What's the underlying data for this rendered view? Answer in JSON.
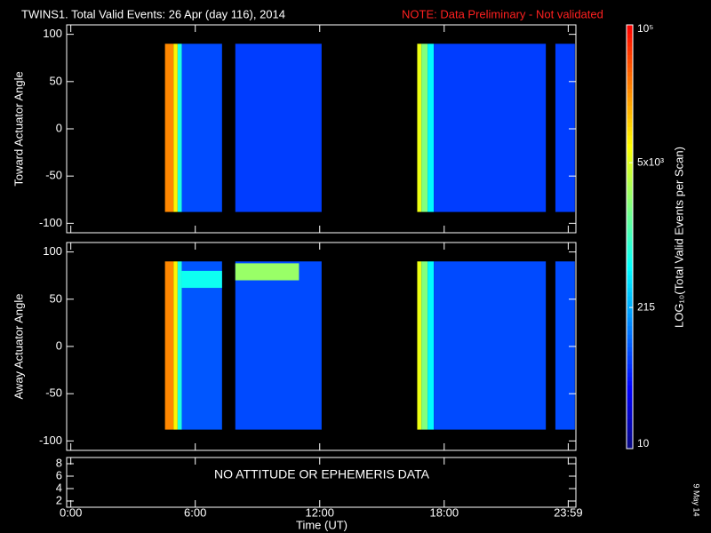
{
  "chart_data": {
    "type": "heatmap",
    "title": "TWINS1. Total Valid Events: 26 Apr (day 116), 2014",
    "note": "NOTE: Data Preliminary - Not validated",
    "xlabel": "Time (UT)",
    "xlim": [
      -0.2,
      24.35
    ],
    "xticks": [
      {
        "value": 0,
        "label": "0:00"
      },
      {
        "value": 6,
        "label": "6:00"
      },
      {
        "value": 12,
        "label": "12:00"
      },
      {
        "value": 18,
        "label": "18:00"
      },
      {
        "value": 23.98,
        "label": "23:59"
      }
    ],
    "colorbar": {
      "label": "LOG₁₀(Total Valid Events per Scan)",
      "log_scale": true,
      "lim": [
        10,
        100000
      ],
      "ticks": [
        {
          "value": 10,
          "label": "10"
        },
        {
          "value": 215,
          "label": "215"
        },
        {
          "value": 5000,
          "label": "5x10³"
        },
        {
          "value": 100000,
          "label": "10⁵"
        }
      ],
      "colors": [
        "#0a0a80",
        "#0000ff",
        "#0080ff",
        "#00ffff",
        "#80ff80",
        "#ffff00",
        "#ff8000",
        "#ff0000"
      ]
    },
    "date_stamp": "9 May 14",
    "panels": [
      {
        "ylabel": "Toward Actuator Angle",
        "ylim": [
          -110,
          110
        ],
        "yticks": [
          -100,
          -50,
          0,
          50,
          100
        ],
        "cells": [
          {
            "x": [
              4.54,
              4.95
            ],
            "y": [
              -88,
              90
            ],
            "value": 25000
          },
          {
            "x": [
              4.95,
              5.15
            ],
            "y": [
              -88,
              90
            ],
            "value": 8000
          },
          {
            "x": [
              5.15,
              5.35
            ],
            "y": [
              -88,
              90
            ],
            "value": 700
          },
          {
            "x": [
              5.35,
              7.29
            ],
            "y": [
              -88,
              90
            ],
            "value": 80
          },
          {
            "x": [
              7.93,
              12.09
            ],
            "y": [
              -88,
              90
            ],
            "value": 70
          },
          {
            "x": [
              16.7,
              16.9
            ],
            "y": [
              -88,
              90
            ],
            "value": 6000
          },
          {
            "x": [
              16.9,
              17.2
            ],
            "y": [
              -88,
              90
            ],
            "value": 2000
          },
          {
            "x": [
              17.2,
              17.5
            ],
            "y": [
              -88,
              90
            ],
            "value": 500
          },
          {
            "x": [
              17.5,
              22.9
            ],
            "y": [
              -88,
              90
            ],
            "value": 70
          },
          {
            "x": [
              23.36,
              24.3
            ],
            "y": [
              -88,
              90
            ],
            "value": 70
          }
        ]
      },
      {
        "ylabel": "Away Actuator Angle",
        "ylim": [
          -110,
          110
        ],
        "yticks": [
          -100,
          -50,
          0,
          50,
          100
        ],
        "cells": [
          {
            "x": [
              4.54,
              4.95
            ],
            "y": [
              -88,
              90
            ],
            "value": 25000
          },
          {
            "x": [
              4.95,
              5.15
            ],
            "y": [
              -88,
              90
            ],
            "value": 8000
          },
          {
            "x": [
              5.15,
              5.35
            ],
            "y": [
              -88,
              90
            ],
            "value": 700
          },
          {
            "x": [
              5.35,
              7.29
            ],
            "y": [
              -88,
              90
            ],
            "value": 90
          },
          {
            "x": [
              5.35,
              7.29
            ],
            "y": [
              62,
              80
            ],
            "value": 600
          },
          {
            "x": [
              7.93,
              12.09
            ],
            "y": [
              -88,
              90
            ],
            "value": 80
          },
          {
            "x": [
              7.93,
              11.0
            ],
            "y": [
              70,
              88
            ],
            "value": 2500
          },
          {
            "x": [
              16.7,
              16.9
            ],
            "y": [
              -88,
              90
            ],
            "value": 6000
          },
          {
            "x": [
              16.9,
              17.2
            ],
            "y": [
              -88,
              90
            ],
            "value": 2000
          },
          {
            "x": [
              17.2,
              17.5
            ],
            "y": [
              -88,
              90
            ],
            "value": 500
          },
          {
            "x": [
              17.5,
              22.9
            ],
            "y": [
              -88,
              90
            ],
            "value": 80
          },
          {
            "x": [
              23.36,
              24.3
            ],
            "y": [
              -88,
              90
            ],
            "value": 80
          }
        ]
      },
      {
        "ylim": [
          1,
          9
        ],
        "yticks": [
          2,
          4,
          6,
          8
        ],
        "annotation": "NO ATTITUDE OR EPHEMERIS DATA",
        "cells": []
      }
    ]
  }
}
